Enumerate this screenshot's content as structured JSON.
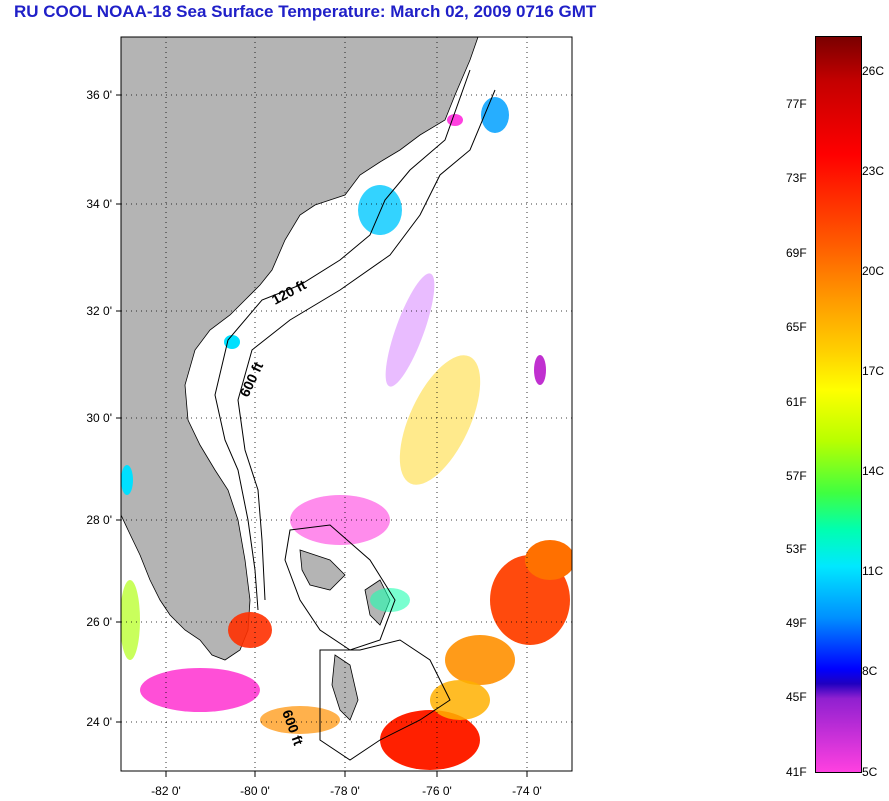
{
  "title": "RU COOL  NOAA-18  Sea Surface Temperature:  March 02, 2009 0716 GMT",
  "map": {
    "lat_labels": [
      "36 0'",
      "34 0'",
      "32 0'",
      "30 0'",
      "28 0'",
      "26 0'",
      "24 0'"
    ],
    "lon_labels": [
      "-82 0'",
      "-80 0'",
      "-78 0'",
      "-76 0'",
      "-74 0'"
    ],
    "contour_labels": [
      "120 ft",
      "600 ft",
      "600 ft"
    ],
    "colors": {
      "land": "#b4b4b4",
      "ocean_cloud": "#ffffff",
      "title": "#2020c8"
    }
  },
  "colorbar": {
    "fahrenheit": [
      "77F",
      "73F",
      "69F",
      "65F",
      "61F",
      "57F",
      "53F",
      "49F",
      "45F",
      "41F"
    ],
    "celsius": [
      "26C",
      "23C",
      "20C",
      "17C",
      "14C",
      "11C",
      "8C",
      "5C"
    ]
  }
}
